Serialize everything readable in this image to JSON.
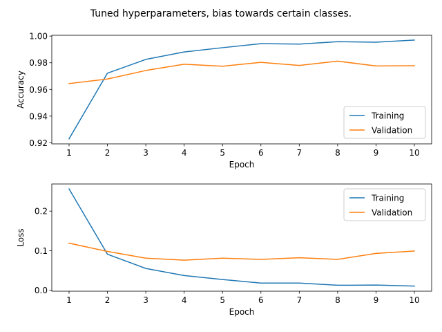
{
  "figure": {
    "title": "Tuned hyperparameters, bias towards certain classes."
  },
  "colors": {
    "training": "#1f77b4",
    "validation": "#ff7f0e"
  },
  "chart_data": [
    {
      "type": "line",
      "id": "accuracy",
      "title": "",
      "xlabel": "Epoch",
      "ylabel": "Accuracy",
      "x": [
        1,
        2,
        3,
        4,
        5,
        6,
        7,
        8,
        9,
        10
      ],
      "xticks": [
        "1",
        "2",
        "3",
        "4",
        "5",
        "6",
        "7",
        "8",
        "9",
        "10"
      ],
      "xlim": [
        0.55,
        10.45
      ],
      "ylim": [
        0.9192,
        1.0006
      ],
      "yticks": [
        0.92,
        0.94,
        0.96,
        0.98,
        1.0
      ],
      "ytick_labels": [
        "0.92",
        "0.94",
        "0.96",
        "0.98",
        "1.00"
      ],
      "grid": false,
      "legend_position": "lower-right",
      "series": [
        {
          "name": "Training",
          "color": "#1f77b4",
          "values": [
            0.923,
            0.9722,
            0.9825,
            0.9881,
            0.9913,
            0.9943,
            0.994,
            0.9958,
            0.9954,
            0.997
          ]
        },
        {
          "name": "Validation",
          "color": "#ff7f0e",
          "values": [
            0.9644,
            0.9678,
            0.9742,
            0.9789,
            0.9774,
            0.9803,
            0.978,
            0.9812,
            0.9776,
            0.9778
          ]
        }
      ]
    },
    {
      "type": "line",
      "id": "loss",
      "title": "",
      "xlabel": "Epoch",
      "ylabel": "Loss",
      "x": [
        1,
        2,
        3,
        4,
        5,
        6,
        7,
        8,
        9,
        10
      ],
      "xticks": [
        "1",
        "2",
        "3",
        "4",
        "5",
        "6",
        "7",
        "8",
        "9",
        "10"
      ],
      "xlim": [
        0.55,
        10.45
      ],
      "ylim": [
        -0.0025,
        0.2685
      ],
      "yticks": [
        0.0,
        0.1,
        0.2
      ],
      "ytick_labels": [
        "0.0",
        "0.1",
        "0.2"
      ],
      "grid": false,
      "legend_position": "upper-right",
      "series": [
        {
          "name": "Training",
          "color": "#1f77b4",
          "values": [
            0.256,
            0.091,
            0.055,
            0.037,
            0.027,
            0.018,
            0.018,
            0.0125,
            0.013,
            0.0105
          ]
        },
        {
          "name": "Validation",
          "color": "#ff7f0e",
          "values": [
            0.119,
            0.098,
            0.081,
            0.076,
            0.081,
            0.078,
            0.082,
            0.078,
            0.093,
            0.099
          ]
        }
      ]
    }
  ]
}
